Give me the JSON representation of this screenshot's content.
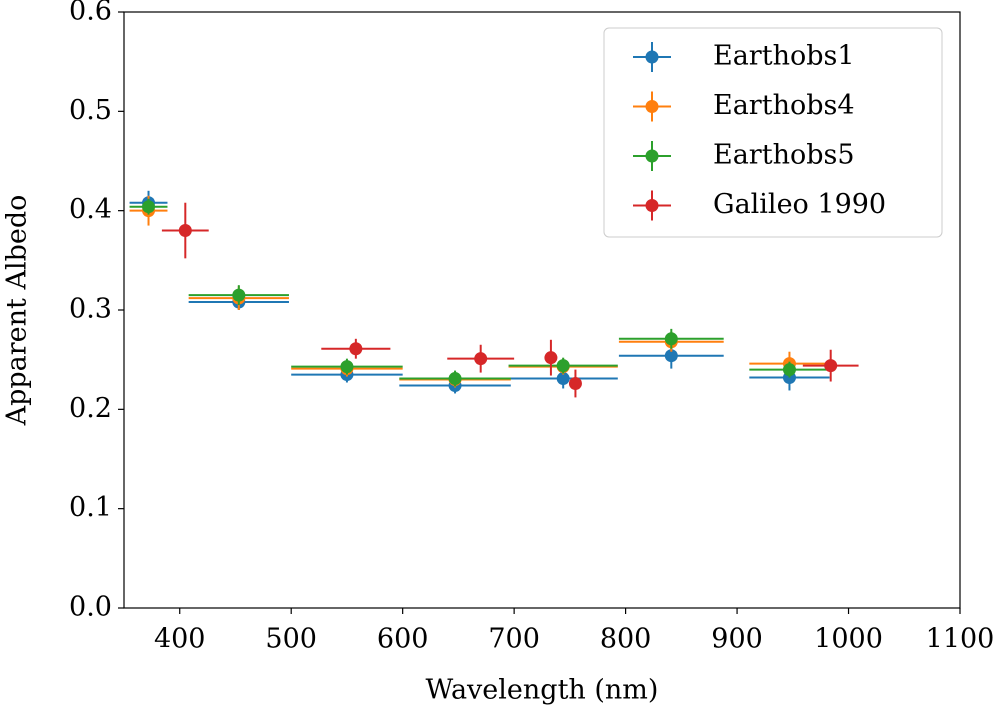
{
  "chart_data": {
    "type": "errorbar",
    "xlabel": "Wavelength (nm)",
    "ylabel": "Apparent Albedo",
    "xlim": [
      350,
      1100
    ],
    "xticks": [
      400,
      500,
      600,
      700,
      800,
      900,
      1000,
      1100
    ],
    "ylim": [
      0,
      0.6
    ],
    "yticks": [
      {
        "value": 0,
        "label": "0.0"
      },
      0.1,
      0.2,
      0.3,
      0.4,
      0.5,
      0.6
    ],
    "legend": "upper right",
    "series": [
      {
        "name": "Earthobs1",
        "color": "#1f77b4",
        "x": [
          372,
          453,
          550,
          647,
          744,
          841,
          947
        ],
        "values": [
          0.408,
          0.308,
          0.235,
          0.224,
          0.231,
          0.254,
          0.232
        ],
        "xerr": [
          17,
          45,
          50,
          50,
          49,
          47,
          36
        ],
        "yerr": [
          0.012,
          0.008,
          0.008,
          0.008,
          0.01,
          0.013,
          0.013
        ]
      },
      {
        "name": "Earthobs4",
        "color": "#ff7f0e",
        "x": [
          372,
          453,
          550,
          647,
          744,
          841,
          947
        ],
        "values": [
          0.4,
          0.312,
          0.241,
          0.23,
          0.243,
          0.268,
          0.246
        ],
        "xerr": [
          17,
          45,
          50,
          50,
          49,
          47,
          36
        ],
        "yerr": [
          0.015,
          0.012,
          0.008,
          0.008,
          0.008,
          0.01,
          0.012
        ]
      },
      {
        "name": "Earthobs5",
        "color": "#2ca02c",
        "x": [
          372,
          453,
          550,
          647,
          744,
          841,
          947
        ],
        "values": [
          0.404,
          0.315,
          0.243,
          0.231,
          0.244,
          0.271,
          0.24
        ],
        "xerr": [
          17,
          45,
          50,
          50,
          49,
          47,
          36
        ],
        "yerr": [
          0.008,
          0.01,
          0.008,
          0.008,
          0.008,
          0.01,
          0.008
        ]
      },
      {
        "name": "Galileo 1990",
        "color": "#d62728",
        "x": [
          405,
          558,
          670,
          733,
          755,
          984
        ],
        "values": [
          0.38,
          0.261,
          0.251,
          0.252,
          0.226,
          0.244
        ],
        "xerr": [
          21,
          31,
          30,
          0,
          0,
          25
        ],
        "yerr": [
          0.028,
          0.01,
          0.014,
          0.018,
          0.014,
          0.016
        ]
      }
    ]
  }
}
